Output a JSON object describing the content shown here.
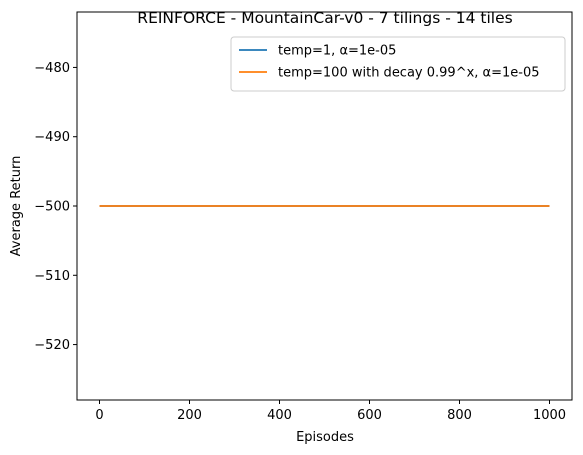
{
  "chart_data": {
    "type": "line",
    "title": "REINFORCE - MountainCar-v0 - 7 tilings - 14 tiles",
    "xlabel": "Episodes",
    "ylabel": "Average Return",
    "xlim": [
      -50,
      1050
    ],
    "ylim": [
      -528,
      -472
    ],
    "xticks": [
      0,
      200,
      400,
      600,
      800,
      1000
    ],
    "xtick_labels": [
      "0",
      "200",
      "400",
      "600",
      "800",
      "1000"
    ],
    "yticks": [
      -480,
      -490,
      -500,
      -510,
      -520
    ],
    "ytick_labels": [
      "−480",
      "−490",
      "−500",
      "−510",
      "−520"
    ],
    "grid": false,
    "legend_position": "top-right",
    "series": [
      {
        "name": "temp=1, α=1e-05",
        "color": "#1f77b4",
        "x": [
          0,
          1000
        ],
        "y": [
          -500,
          -500
        ]
      },
      {
        "name": "temp=100 with decay 0.99^x, α=1e-05",
        "color": "#ff7f0e",
        "x": [
          0,
          1000
        ],
        "y": [
          -500,
          -500
        ]
      }
    ]
  }
}
